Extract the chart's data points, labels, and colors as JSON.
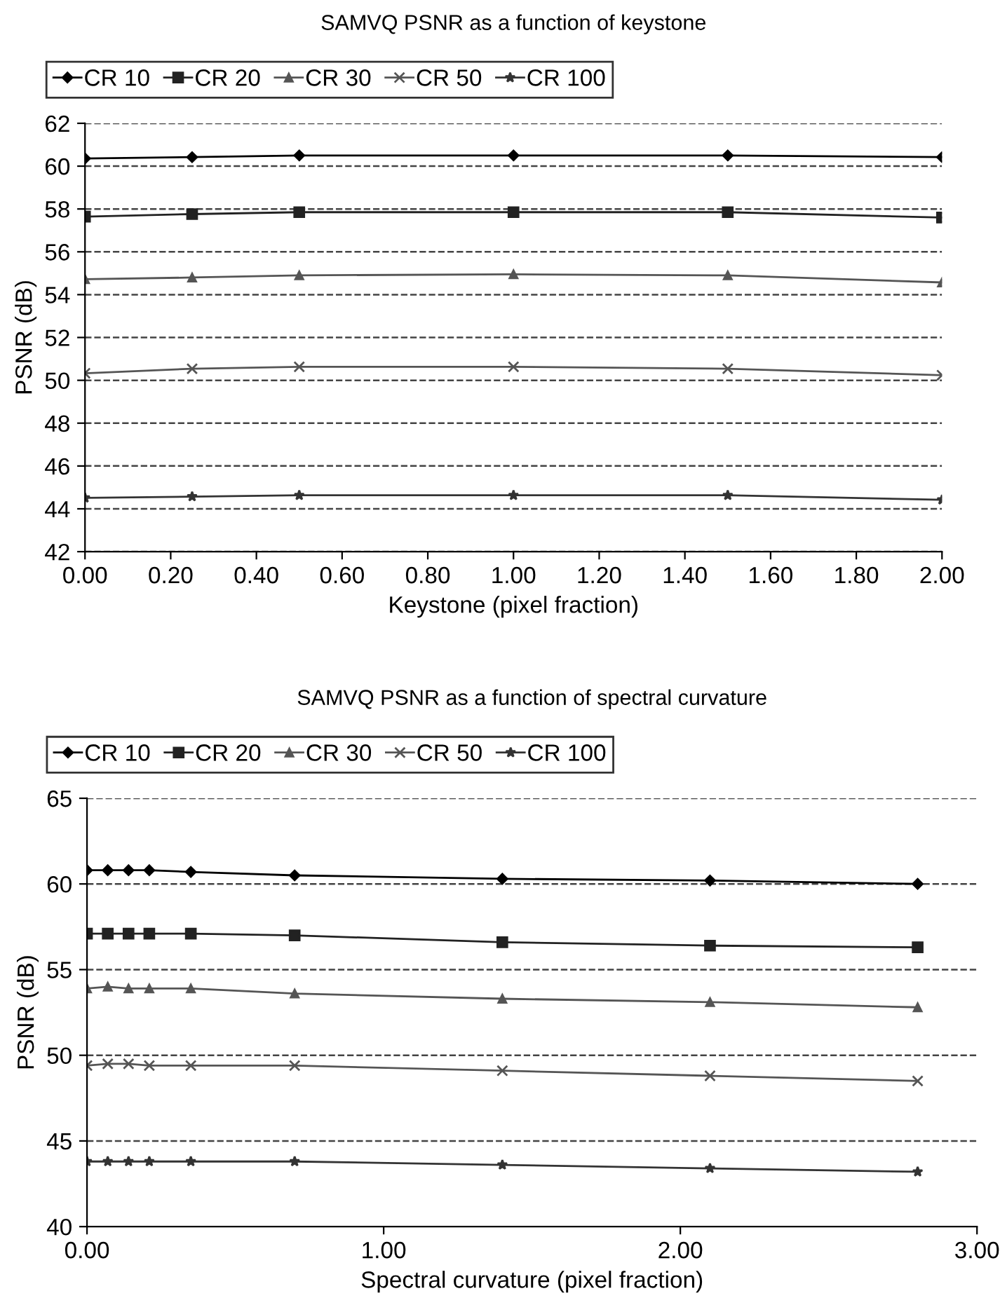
{
  "chart_data": [
    {
      "type": "line",
      "title": "SAMVQ PSNR as a function of keystone",
      "xlabel": "Keystone (pixel fraction)",
      "ylabel": "PSNR (dB)",
      "x": [
        0,
        0.25,
        0.5,
        1.0,
        1.5,
        2.0
      ],
      "series": [
        {
          "name": "CR 10",
          "color": "#000000",
          "marker": "diamond",
          "values": [
            60.36,
            60.42,
            60.5,
            60.5,
            60.5,
            60.42
          ]
        },
        {
          "name": "CR 20",
          "color": "#222222",
          "marker": "square",
          "values": [
            57.64,
            57.76,
            57.85,
            57.85,
            57.85,
            57.6
          ]
        },
        {
          "name": "CR 30",
          "color": "#555555",
          "marker": "triangle",
          "values": [
            54.72,
            54.8,
            54.9,
            54.95,
            54.9,
            54.57
          ]
        },
        {
          "name": "CR 50",
          "color": "#555555",
          "marker": "cross",
          "values": [
            50.33,
            50.54,
            50.63,
            50.63,
            50.54,
            50.24
          ]
        },
        {
          "name": "CR 100",
          "color": "#333333",
          "marker": "star",
          "values": [
            44.51,
            44.57,
            44.63,
            44.63,
            44.63,
            44.42
          ]
        }
      ],
      "xlim": [
        0,
        2
      ],
      "xticks": [
        {
          "value": 0,
          "label": "0.00"
        },
        {
          "value": 0.2,
          "label": "0.20"
        },
        {
          "value": 0.4,
          "label": "0.40"
        },
        {
          "value": 0.6,
          "label": "0.60"
        },
        {
          "value": 0.8,
          "label": "0.80"
        },
        {
          "value": 1.0,
          "label": "1.00"
        },
        {
          "value": 1.2,
          "label": "1.20"
        },
        {
          "value": 1.4,
          "label": "1.40"
        },
        {
          "value": 1.6,
          "label": "1.60"
        },
        {
          "value": 1.8,
          "label": "1.80"
        },
        {
          "value": 2.0,
          "label": "2.00"
        }
      ],
      "ylim": [
        42,
        62
      ],
      "yticks": [
        42,
        44,
        46,
        48,
        50,
        52,
        54,
        56,
        58,
        60,
        62
      ],
      "grid": "y",
      "legend": "top left",
      "line_style": "solid"
    },
    {
      "type": "line",
      "title": "SAMVQ PSNR as a function of spectral curvature",
      "xlabel": "Spectral curvature (pixel fraction)",
      "ylabel": "PSNR (dB)",
      "x": [
        0,
        0.07,
        0.14,
        0.21,
        0.35,
        0.7,
        1.4,
        2.1,
        2.8
      ],
      "series": [
        {
          "name": "CR 10",
          "color": "#000000",
          "marker": "diamond",
          "values": [
            60.8,
            60.8,
            60.8,
            60.8,
            60.7,
            60.5,
            60.3,
            60.2,
            60.0
          ]
        },
        {
          "name": "CR 20",
          "color": "#222222",
          "marker": "square",
          "values": [
            57.1,
            57.1,
            57.1,
            57.1,
            57.1,
            57.0,
            56.6,
            56.4,
            56.3
          ]
        },
        {
          "name": "CR 30",
          "color": "#555555",
          "marker": "triangle",
          "values": [
            53.9,
            54.0,
            53.9,
            53.9,
            53.9,
            53.6,
            53.3,
            53.1,
            52.8
          ]
        },
        {
          "name": "CR 50",
          "color": "#555555",
          "marker": "cross",
          "values": [
            49.4,
            49.5,
            49.5,
            49.4,
            49.4,
            49.4,
            49.1,
            48.8,
            48.5
          ]
        },
        {
          "name": "CR 100",
          "color": "#333333",
          "marker": "star",
          "values": [
            43.8,
            43.8,
            43.8,
            43.8,
            43.8,
            43.8,
            43.6,
            43.4,
            43.2
          ]
        }
      ],
      "xlim": [
        0,
        3
      ],
      "xticks": [
        {
          "value": 0,
          "label": "0.00"
        },
        {
          "value": 1,
          "label": "1.00"
        },
        {
          "value": 2,
          "label": "2.00"
        },
        {
          "value": 3,
          "label": "3.00"
        }
      ],
      "ylim": [
        40,
        65
      ],
      "yticks": [
        40,
        45,
        50,
        55,
        60,
        65
      ],
      "grid": "y",
      "legend": "top left",
      "line_style": "solid"
    }
  ]
}
